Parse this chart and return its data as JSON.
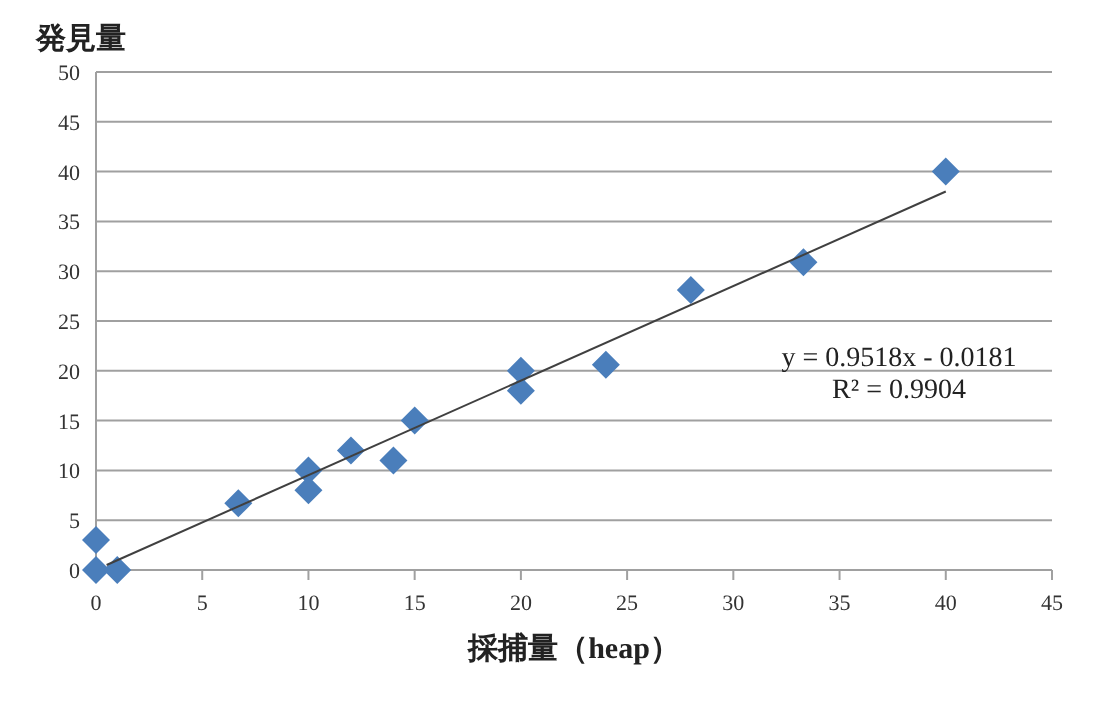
{
  "chart_data": {
    "type": "scatter",
    "ylabel": "発見量",
    "xlabel": "採捕量（heap）",
    "xlim": [
      0,
      45
    ],
    "xticks": [
      0,
      5,
      10,
      15,
      20,
      25,
      30,
      35,
      40,
      45
    ],
    "ylim": [
      0,
      50
    ],
    "yticks": [
      0,
      5,
      10,
      15,
      20,
      25,
      30,
      35,
      40,
      45,
      50
    ],
    "grid": "y",
    "series": [
      {
        "color": "#4a7ebb",
        "marker": "diamond",
        "x": [
          0,
          0,
          1,
          6.7,
          10,
          10,
          12,
          14,
          15,
          20,
          20,
          24,
          28,
          33.3,
          40
        ],
        "values": [
          0,
          3,
          0,
          6.7,
          10,
          8,
          12,
          11,
          15,
          20,
          18,
          20.6,
          28.1,
          30.9,
          40
        ]
      },
      {
        "type": "line",
        "color": "#404040",
        "x": [
          0.5,
          40
        ],
        "values": [
          0.5,
          38
        ]
      }
    ],
    "annotations": [
      "y = 0.9518x - 0.0181",
      "R² = 0.9904"
    ]
  }
}
